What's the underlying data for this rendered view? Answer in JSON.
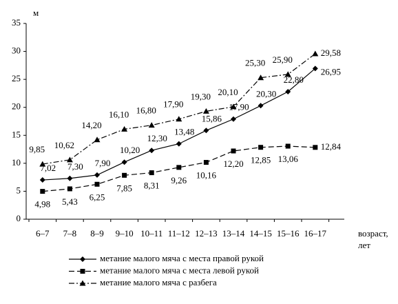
{
  "chart_data": {
    "type": "line",
    "y_label": "м",
    "x_label": [
      "возраст,",
      "лет"
    ],
    "categories": [
      "6–7",
      "7–8",
      "8–9",
      "9–10",
      "10–11",
      "11–12",
      "12–13",
      "13–14",
      "14–15",
      "15–16",
      "16–17"
    ],
    "ylim": [
      0,
      35
    ],
    "yticks": [
      0,
      5,
      10,
      15,
      20,
      25,
      30,
      35
    ],
    "series": [
      {
        "name": "метание малого мяча с места правой рукой",
        "color": "#000000",
        "marker": "diamond",
        "dash": "solid",
        "values": [
          7.02,
          7.3,
          7.9,
          10.2,
          12.3,
          13.48,
          15.86,
          17.9,
          20.3,
          22.8,
          26.95
        ],
        "value_labels": [
          "7,02",
          "7,30",
          "7,90",
          "10,20",
          "12,30",
          "13,48",
          "15,86",
          "17,90",
          "20,30",
          "22,80",
          "26,95"
        ]
      },
      {
        "name": "метание малого мяча с места левой рукой",
        "color": "#000000",
        "marker": "square",
        "dash": "dashed",
        "values": [
          4.98,
          5.43,
          6.25,
          7.85,
          8.31,
          9.26,
          10.16,
          12.2,
          12.85,
          13.06,
          12.84
        ],
        "value_labels": [
          "4,98",
          "5,43",
          "6,25",
          "7,85",
          "8,31",
          "9,26",
          "10,16",
          "12,20",
          "12,85",
          "13,06",
          "12,84"
        ]
      },
      {
        "name": "метание малого мяча с разбега",
        "color": "#000000",
        "marker": "triangle",
        "dash": "dashdot",
        "values": [
          9.85,
          10.62,
          14.2,
          16.1,
          16.8,
          17.9,
          19.3,
          20.1,
          25.3,
          25.9,
          29.58
        ],
        "value_labels": [
          "9,85",
          "10,62",
          "14,20",
          "16,10",
          "16,80",
          "17,90",
          "19,30",
          "20,10",
          "25,30",
          "25,90",
          "29,58"
        ]
      }
    ]
  }
}
